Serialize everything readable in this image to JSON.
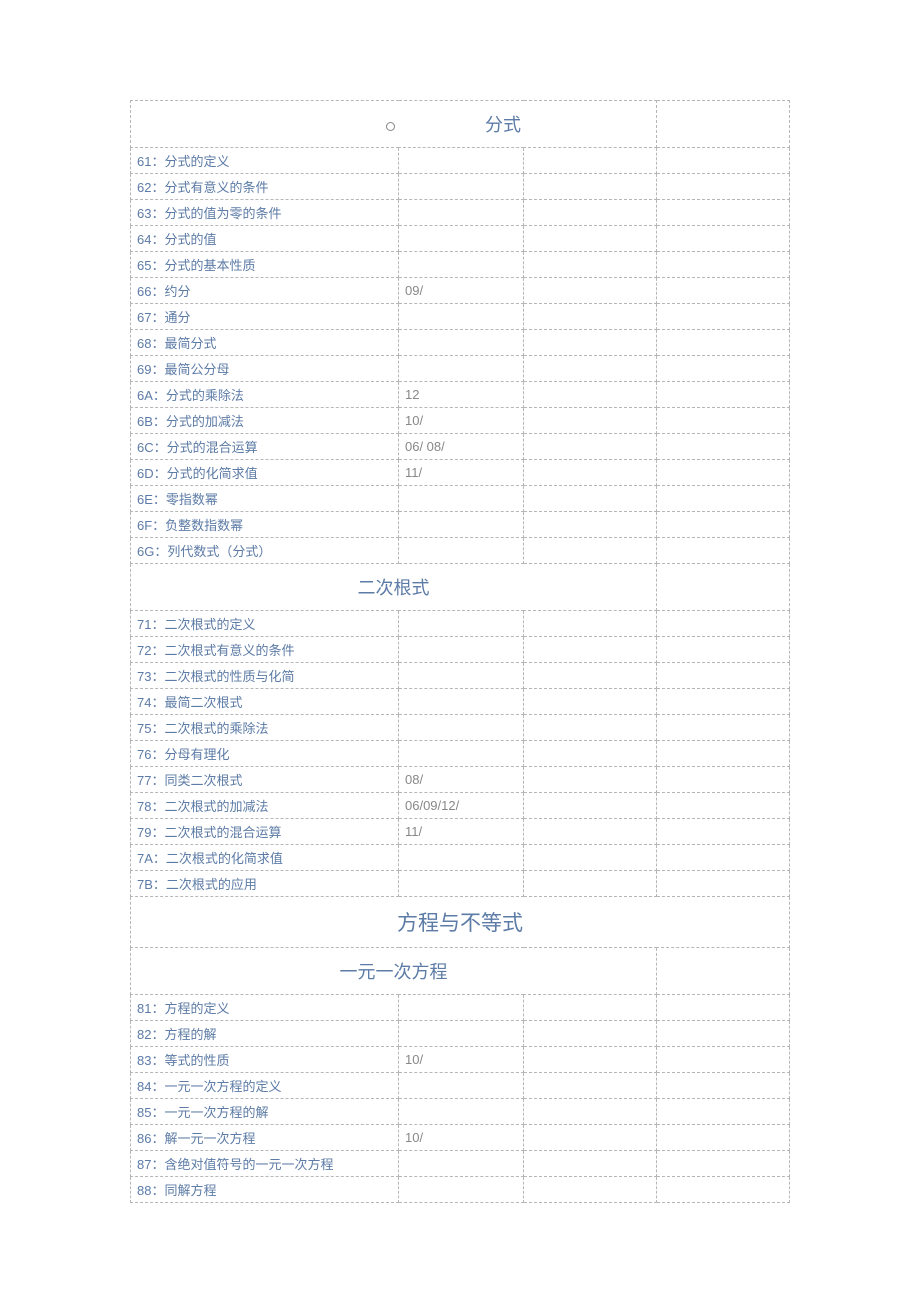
{
  "sections": {
    "s1": {
      "title": "分式"
    },
    "s2": {
      "title": "二次根式"
    },
    "s3": {
      "title": "方程与不等式"
    },
    "s4": {
      "title": "一元一次方程"
    }
  },
  "rows": {
    "r61": {
      "label": "61：分式的定义",
      "v": ""
    },
    "r62": {
      "label": "62：分式有意义的条件",
      "v": ""
    },
    "r63": {
      "label": "63：分式的值为零的条件",
      "v": ""
    },
    "r64": {
      "label": "64：分式的值",
      "v": ""
    },
    "r65": {
      "label": "65：分式的基本性质",
      "v": ""
    },
    "r66": {
      "label": "66：约分",
      "v": "09/"
    },
    "r67": {
      "label": "67：通分",
      "v": ""
    },
    "r68": {
      "label": "68：最简分式",
      "v": ""
    },
    "r69": {
      "label": "69：最简公分母",
      "v": ""
    },
    "r6A": {
      "label": "6A：分式的乘除法",
      "v": "12"
    },
    "r6B": {
      "label": "6B：分式的加减法",
      "v": "10/"
    },
    "r6C": {
      "label": "6C：分式的混合运算",
      "v": "06/ 08/"
    },
    "r6D": {
      "label": "6D：分式的化简求值",
      "v": "11/"
    },
    "r6E": {
      "label": "6E：零指数幂",
      "v": ""
    },
    "r6F": {
      "label": "6F：负整数指数幂",
      "v": ""
    },
    "r6G": {
      "label": "6G：列代数式（分式）",
      "v": ""
    },
    "r71": {
      "label": "71：二次根式的定义",
      "v": ""
    },
    "r72": {
      "label": "72：二次根式有意义的条件",
      "v": ""
    },
    "r73": {
      "label": "73：二次根式的性质与化简",
      "v": ""
    },
    "r74": {
      "label": "74：最简二次根式",
      "v": ""
    },
    "r75": {
      "label": "75：二次根式的乘除法",
      "v": ""
    },
    "r76": {
      "label": "76：分母有理化",
      "v": ""
    },
    "r77": {
      "label": "77：同类二次根式",
      "v": "08/"
    },
    "r78": {
      "label": "78：二次根式的加减法",
      "v": "06/09/12/"
    },
    "r79": {
      "label": "79：二次根式的混合运算",
      "v": "11/"
    },
    "r7A": {
      "label": "7A：二次根式的化简求值",
      "v": ""
    },
    "r7B": {
      "label": "7B：二次根式的应用",
      "v": ""
    },
    "r81": {
      "label": "81：方程的定义",
      "v": ""
    },
    "r82": {
      "label": "82：方程的解",
      "v": ""
    },
    "r83": {
      "label": "83：等式的性质",
      "v": "10/"
    },
    "r84": {
      "label": "84：一元一次方程的定义",
      "v": ""
    },
    "r85": {
      "label": "85：一元一次方程的解",
      "v": ""
    },
    "r86": {
      "label": "86：解一元一次方程",
      "v": "10/"
    },
    "r87": {
      "label": "87：含绝对值符号的一元一次方程",
      "v": ""
    },
    "r88": {
      "label": "88：同解方程",
      "v": ""
    }
  }
}
